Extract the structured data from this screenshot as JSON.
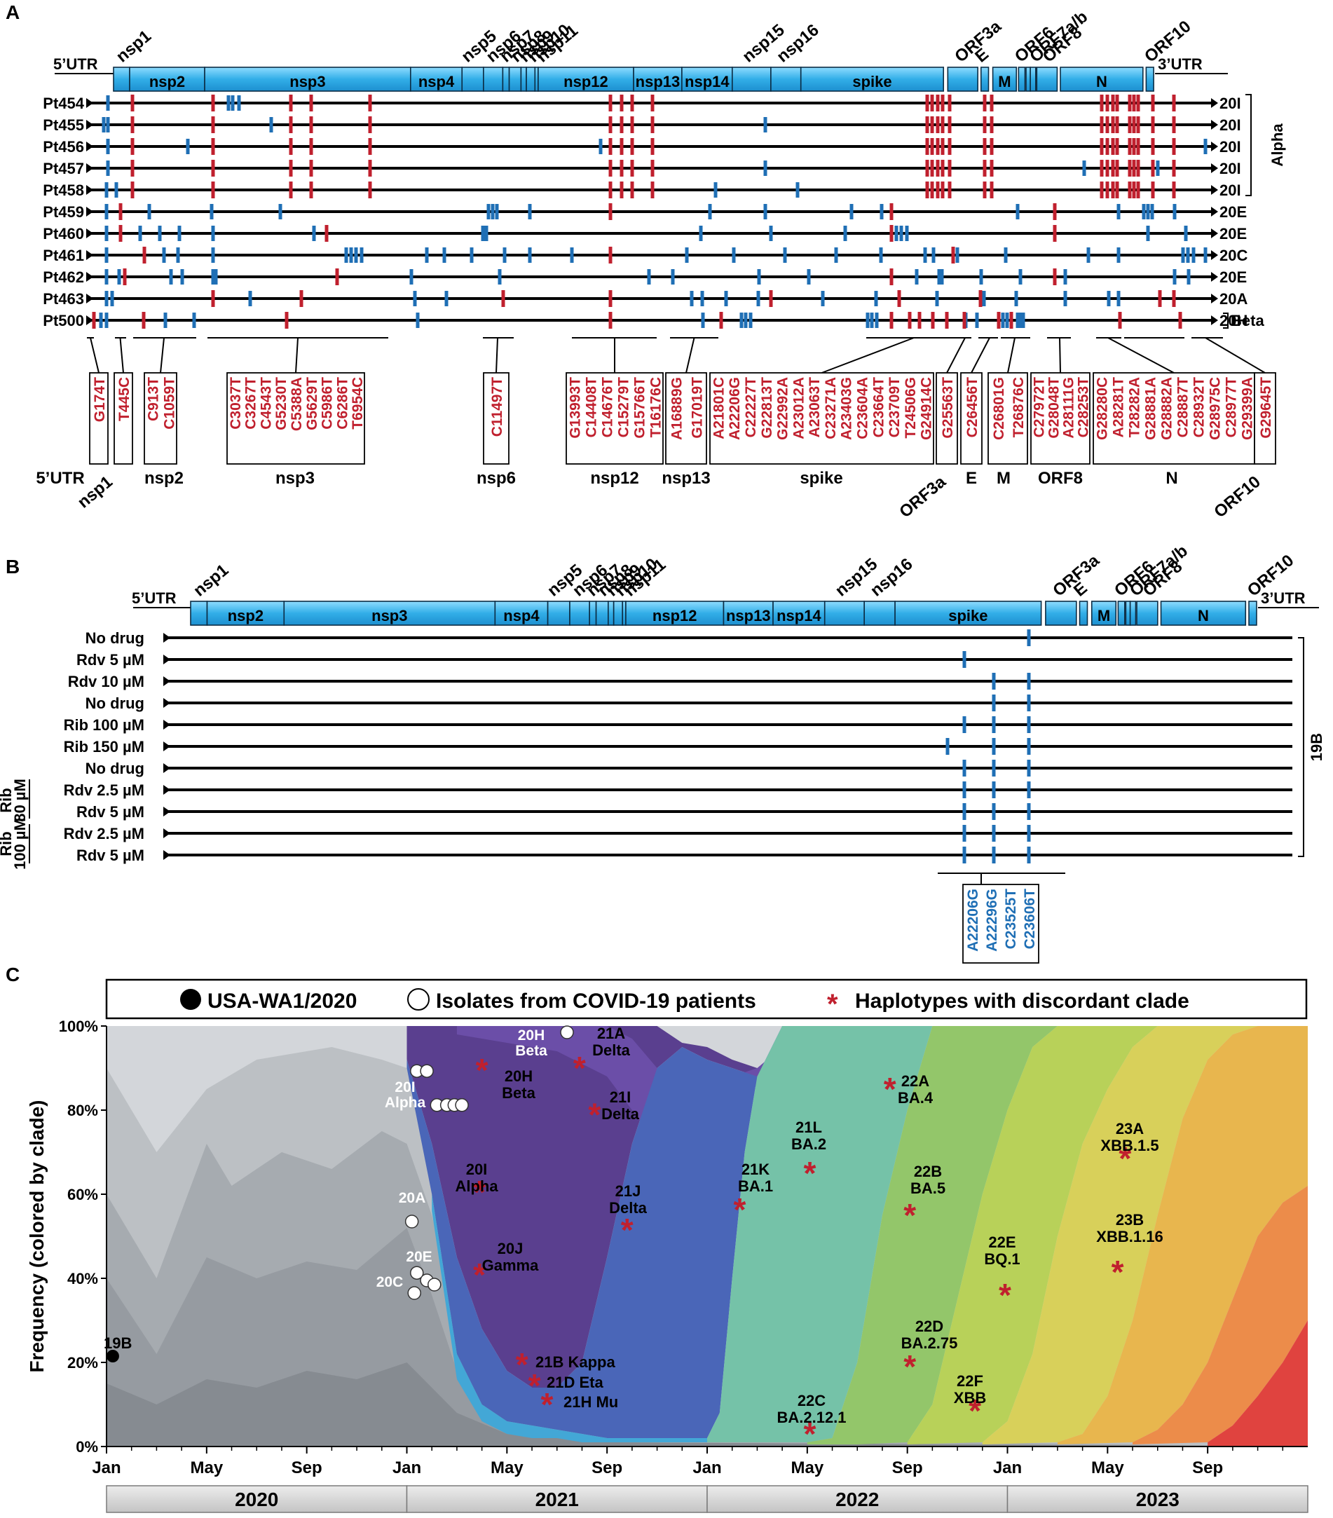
{
  "colors": {
    "gene_fill": "#3fb3e8",
    "gene_stroke": "#0b2c44",
    "clonal_red": "#c0202e",
    "unique_blue": "#1f6fb5",
    "line": "#000000",
    "year_bar": "#d4d4d4"
  },
  "panel_a": {
    "label": "A",
    "genome_labels": {
      "utr5": "5’UTR",
      "utr3": "3’UTR",
      "nsp2": "nsp2",
      "nsp3": "nsp3",
      "nsp4": "nsp4",
      "nsp12": "nsp12",
      "nsp13": "nsp13",
      "nsp14": "nsp14",
      "spike": "spike",
      "m": "M",
      "n": "N"
    },
    "top_labels": [
      "nsp1",
      "nsp5",
      "nsp6",
      "nsp7",
      "nsp8",
      "nsp9",
      "nsp10",
      "nsp11",
      "nsp15",
      "nsp16",
      "ORF3a",
      "E",
      "ORF6",
      "ORF7a/b",
      "ORF8",
      "ORF10"
    ],
    "rows": [
      {
        "patient": "Pt454",
        "clade": "20I"
      },
      {
        "patient": "Pt455",
        "clade": "20I"
      },
      {
        "patient": "Pt456",
        "clade": "20I"
      },
      {
        "patient": "Pt457",
        "clade": "20I"
      },
      {
        "patient": "Pt458",
        "clade": "20I"
      },
      {
        "patient": "Pt459",
        "clade": "20E"
      },
      {
        "patient": "Pt460",
        "clade": "20E"
      },
      {
        "patient": "Pt461",
        "clade": "20C"
      },
      {
        "patient": "Pt462",
        "clade": "20E"
      },
      {
        "patient": "Pt463",
        "clade": "20A"
      },
      {
        "patient": "Pt500",
        "clade": "20H"
      }
    ],
    "bracket_alpha": "Alpha",
    "bracket_beta": "Beta",
    "mutation_groups": [
      {
        "region": "5’UTR",
        "mutations": [
          "G174T"
        ]
      },
      {
        "region": "nsp1",
        "mutations": [
          "T445C"
        ]
      },
      {
        "region": "nsp2",
        "mutations": [
          "C913T",
          "C1059T"
        ]
      },
      {
        "region": "nsp3",
        "mutations": [
          "C3037T",
          "C3267T",
          "C4543T",
          "G5230T",
          "C5388A",
          "G5629T",
          "C5986T",
          "C6286T",
          "T6954C"
        ]
      },
      {
        "region": "nsp6",
        "mutations": [
          "C11497T"
        ]
      },
      {
        "region": "nsp12",
        "mutations": [
          "G13993T",
          "C14408T",
          "C14676T",
          "C15279T",
          "G15766T",
          "T16176C"
        ]
      },
      {
        "region": "nsp13",
        "mutations": [
          "A16889G",
          "G17019T"
        ]
      },
      {
        "region": "spike",
        "mutations": [
          "A21801C",
          "A22206G",
          "C22227T",
          "G22813T",
          "G22992A",
          "A23012A",
          "A23063T",
          "C23271A",
          "A23403G",
          "C23604A",
          "C23664T",
          "C23709T",
          "T24506G",
          "G24914C"
        ]
      },
      {
        "region": "ORF3a",
        "mutations": [
          "G25563T"
        ]
      },
      {
        "region": "E",
        "mutations": [
          "C26456T"
        ]
      },
      {
        "region": "M",
        "mutations": [
          "C26801G",
          "T26876C"
        ]
      },
      {
        "region": "ORF8",
        "mutations": [
          "C27972T",
          "G28048T",
          "A28111G",
          "C28253T"
        ]
      },
      {
        "region": "N",
        "mutations": [
          "G28280C",
          "A28281T",
          "T28282A",
          "G28881A",
          "G28882A",
          "C28887T",
          "C28932T",
          "G28975C",
          "C28977T",
          "G29399A"
        ]
      },
      {
        "region": "ORF10",
        "mutations": [
          "G29645T"
        ]
      }
    ]
  },
  "panel_b": {
    "label": "B",
    "genome_labels": {
      "utr5": "5’UTR",
      "utr3": "3’UTR",
      "nsp2": "nsp2",
      "nsp3": "nsp3",
      "nsp4": "nsp4",
      "nsp12": "nsp12",
      "nsp13": "nsp13",
      "nsp14": "nsp14",
      "spike": "spike",
      "m": "M",
      "n": "N"
    },
    "top_labels": [
      "nsp1",
      "nsp5",
      "nsp6",
      "nsp7",
      "nsp8",
      "nsp9",
      "nsp10",
      "nsp11",
      "nsp15",
      "nsp16",
      "ORF3a",
      "E",
      "ORF6",
      "ORF7a/b",
      "ORF8",
      "ORF10"
    ],
    "rows": [
      "No drug",
      "Rdv 5 µM",
      "Rdv 10 µM",
      "No drug",
      "Rib 100 µM",
      "Rib 150 µM",
      "No drug",
      "Rdv 2.5 µM",
      "Rdv 5 µM",
      "Rdv 2.5 µM",
      "Rdv 5 µM"
    ],
    "group1_label": "Rib 80 µM",
    "group2_label": "Rib 100 µM",
    "clade_label": "19B",
    "mutations": [
      "A22206G",
      "A22296G",
      "C23525T",
      "C23606T"
    ]
  },
  "panel_c": {
    "label": "C",
    "legend": {
      "wa1": "USA-WA1/2020",
      "isolates": "Isolates from COVID-19 patients",
      "haplotypes": "Haplotypes with discordant clade"
    },
    "y_axis_label": "Frequency (colored by clade)",
    "y_ticks": [
      "0%",
      "20%",
      "40%",
      "60%",
      "80%",
      "100%"
    ],
    "x_ticks": [
      "Jan",
      "May",
      "Sep",
      "Jan",
      "May",
      "Sep",
      "Jan",
      "May",
      "Sep",
      "Jan",
      "May",
      "Sep"
    ],
    "years": [
      "2020",
      "2021",
      "2022",
      "2023"
    ],
    "wa1_label": "19B",
    "isolate_labels": {
      "beta": "20H\nBeta",
      "alpha": "20I\nAlpha",
      "a": "20A",
      "e": "20E",
      "c": "20C"
    },
    "haplotypes": [
      {
        "clade": "20H",
        "name": "Beta"
      },
      {
        "clade": "21A",
        "name": "Delta"
      },
      {
        "clade": "21I",
        "name": "Delta"
      },
      {
        "clade": "20I",
        "name": "Alpha"
      },
      {
        "clade": "21J",
        "name": "Delta"
      },
      {
        "clade": "20J",
        "name": "Gamma"
      },
      {
        "clade": "21B",
        "name": "Kappa"
      },
      {
        "clade": "21D",
        "name": "Eta"
      },
      {
        "clade": "21H",
        "name": "Mu"
      },
      {
        "clade": "21K",
        "name": "BA.1"
      },
      {
        "clade": "21L",
        "name": "BA.2"
      },
      {
        "clade": "22A",
        "name": "BA.4"
      },
      {
        "clade": "22B",
        "name": "BA.5"
      },
      {
        "clade": "22C",
        "name": "BA.2.12.1"
      },
      {
        "clade": "22D",
        "name": "BA.2.75"
      },
      {
        "clade": "22E",
        "name": "BQ.1"
      },
      {
        "clade": "22F",
        "name": "XBB"
      },
      {
        "clade": "23A",
        "name": "XBB.1.5"
      },
      {
        "clade": "23B",
        "name": "XBB.1.16"
      }
    ]
  }
}
